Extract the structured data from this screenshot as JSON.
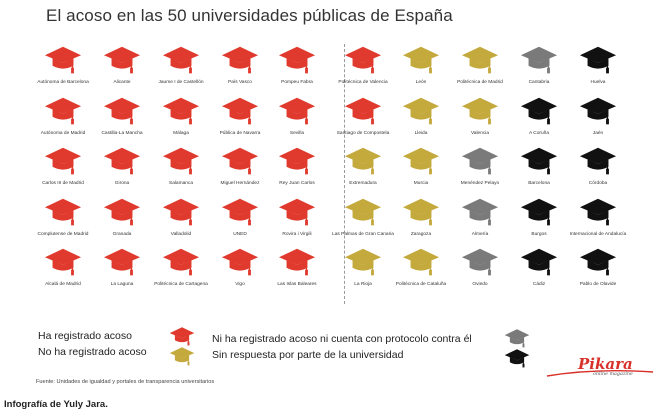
{
  "title": "El acoso en las 50 universidades públicas de España",
  "colors": {
    "registered": "#e03a2e",
    "not_registered": "#c4a93d",
    "no_protocol": "#7a7a7a",
    "no_response": "#111111"
  },
  "grid": [
    [
      {
        "name": "Autónoma de Barcelona",
        "status": "registered"
      },
      {
        "name": "Alicante",
        "status": "registered"
      },
      {
        "name": "Jaume I de Castellón",
        "status": "registered"
      },
      {
        "name": "País Vasco",
        "status": "registered"
      },
      {
        "name": "Pompeu Fabra",
        "status": "registered"
      },
      {
        "name": "Politécnica de Valencia",
        "status": "registered"
      },
      {
        "name": "León",
        "status": "not_registered"
      },
      {
        "name": "Politécnica de Madrid",
        "status": "not_registered"
      },
      {
        "name": "Cantabria",
        "status": "no_protocol"
      },
      {
        "name": "Huelva",
        "status": "no_response"
      }
    ],
    [
      {
        "name": "Autónoma de Madrid",
        "status": "registered"
      },
      {
        "name": "Castilla-La Mancha",
        "status": "registered"
      },
      {
        "name": "Málaga",
        "status": "registered"
      },
      {
        "name": "Pública de Navarra",
        "status": "registered"
      },
      {
        "name": "Sevilla",
        "status": "registered"
      },
      {
        "name": "Santiago de Compostela",
        "status": "registered"
      },
      {
        "name": "Lleida",
        "status": "not_registered"
      },
      {
        "name": "Valencia",
        "status": "not_registered"
      },
      {
        "name": "A Coruña",
        "status": "no_response"
      },
      {
        "name": "Jaén",
        "status": "no_response"
      }
    ],
    [
      {
        "name": "Carlos III de Madrid",
        "status": "registered"
      },
      {
        "name": "Girona",
        "status": "registered"
      },
      {
        "name": "Salamanca",
        "status": "registered"
      },
      {
        "name": "Miguel Hernández",
        "status": "registered"
      },
      {
        "name": "Rey Juan Carlos",
        "status": "registered"
      },
      {
        "name": "Extremadura",
        "status": "not_registered"
      },
      {
        "name": "Murcia",
        "status": "not_registered"
      },
      {
        "name": "Menéndez Pelayo",
        "status": "no_protocol"
      },
      {
        "name": "Barcelona",
        "status": "no_response"
      },
      {
        "name": "Córdoba",
        "status": "no_response"
      }
    ],
    [
      {
        "name": "Complutense de Madrid",
        "status": "registered"
      },
      {
        "name": "Granada",
        "status": "registered"
      },
      {
        "name": "Valladolid",
        "status": "registered"
      },
      {
        "name": "UNED",
        "status": "registered"
      },
      {
        "name": "Rovira i Virgili",
        "status": "registered"
      },
      {
        "name": "Las Palmas de Gran Canaria",
        "status": "not_registered"
      },
      {
        "name": "Zaragoza",
        "status": "not_registered"
      },
      {
        "name": "Almería",
        "status": "no_protocol"
      },
      {
        "name": "Burgos",
        "status": "no_response"
      },
      {
        "name": "Internacional de Andalucía",
        "status": "no_response"
      }
    ],
    [
      {
        "name": "Alcalá de Madrid",
        "status": "registered"
      },
      {
        "name": "La Laguna",
        "status": "registered"
      },
      {
        "name": "Politécnica de Cartagena",
        "status": "registered"
      },
      {
        "name": "Vigo",
        "status": "registered"
      },
      {
        "name": "Las Islas Baleares",
        "status": "registered"
      },
      {
        "name": "La Rioja",
        "status": "not_registered"
      },
      {
        "name": "Politécnica de Cataluña",
        "status": "not_registered"
      },
      {
        "name": "Oviedo",
        "status": "no_protocol"
      },
      {
        "name": "Cádiz",
        "status": "no_response"
      },
      {
        "name": "Pablo de Olavide",
        "status": "no_response"
      }
    ]
  ],
  "legend": {
    "registered": "Ha registrado acoso",
    "not_registered": "No ha registrado acoso",
    "no_protocol": "Ni ha registrado acoso ni cuenta con protocolo contra él",
    "no_response": "Sin respuesta por parte de la universidad",
    "icon_registered": "graduation-cap-red-icon",
    "icon_not_registered": "graduation-cap-gold-icon",
    "icon_no_protocol": "graduation-cap-gray-icon",
    "icon_no_response": "graduation-cap-black-icon"
  },
  "source": "Fuente: Unidades de igualdad y portales de transparencia universitarios",
  "credit": "Infografía de Yuly Jara.",
  "brand": {
    "name": "Pikara",
    "tagline": "online magazine"
  }
}
